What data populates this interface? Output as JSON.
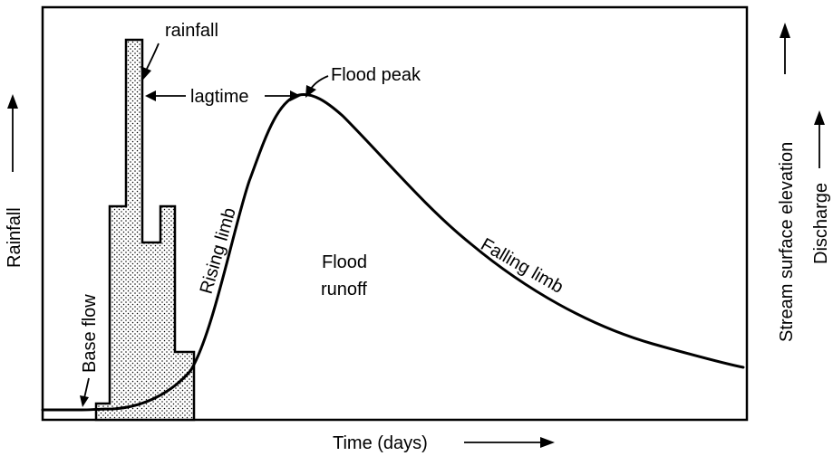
{
  "labels": {
    "rainfall": "rainfall",
    "lagtime": "lagtime",
    "flood_peak": "Flood peak",
    "rising_limb": "Rising limb",
    "falling_limb": "Falling limb",
    "flood_runoff_line1": "Flood",
    "flood_runoff_line2": "runoff",
    "base_flow": "Base flow",
    "y_left": "Rainfall",
    "y_right_1": "Stream surface elevation",
    "y_right_2": "Discharge",
    "x_axis": "Time (days)"
  }
}
